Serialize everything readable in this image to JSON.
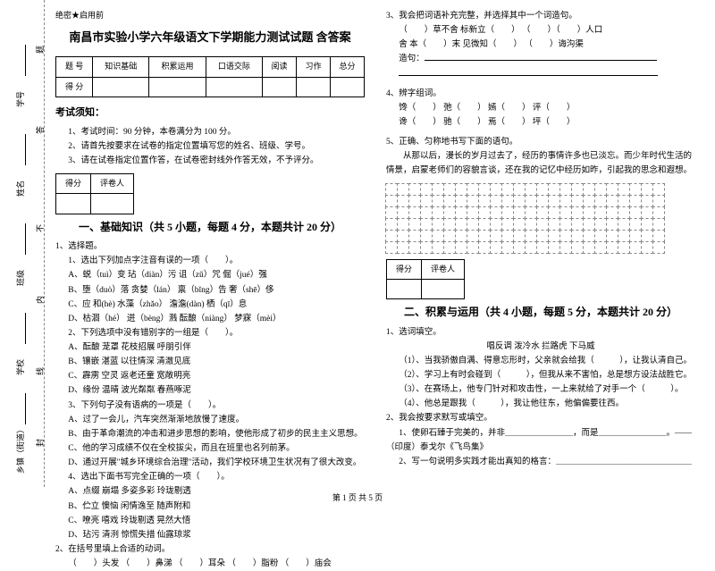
{
  "margin": {
    "labels": [
      "乡镇（街道）",
      "学校",
      "班级",
      "姓名",
      "学号"
    ],
    "cuts": [
      "封",
      "线",
      "内",
      "不",
      "答",
      "题"
    ]
  },
  "secret": "绝密★启用前",
  "title": "南昌市实验小学六年级语文下学期能力测试试题 含答案",
  "scoreTable": {
    "headers": [
      "题  号",
      "知识基础",
      "积累运用",
      "口语交际",
      "阅读",
      "习作",
      "总分"
    ],
    "row2": "得  分"
  },
  "noticeTitle": "考试须知：",
  "notices": [
    "1、考试时间：90 分钟，本卷满分为 100 分。",
    "2、请首先按要求在试卷的指定位置填写您的姓名、班级、学号。",
    "3、请在试卷指定位置作答，在试卷密封线外作答无效，不予评分。"
  ],
  "scoreboxCols": [
    "得分",
    "评卷人"
  ],
  "section1": "一、基础知识（共 5 小题，每题 4 分，本题共计 20 分）",
  "q1": {
    "title": "1、选择题。",
    "sub1": "1、选出下列加点字注音有误的一项（　　）。",
    "opts1": [
      "A、蜕（tuì）变        玷（diàn）污        诅（zǔ）咒            倔（jué）强",
      "B、堕（duò）落         贪婪（lán）          禀（bǐng）告         奢（shē）侈",
      "C、应 和(hè)           水藻（zhǎo）          澹澹(dàn)            栖（qī）息",
      "D、枯涸（hé）            迸（bèng）溅        酝酿（niàng）        梦寐（mèi）"
    ],
    "sub2": "2、下列选项中没有错别字的一组是（　　）。",
    "opts2": [
      "A、酝酿    茏罩    花枝招展    呼朋引伴",
      "B、镶嵌    湛蓝    以往情深    清澈见底",
      "C、霹雳    空灵    返老还童    宽敞明亮",
      "D、缘份    温晴    波光粼粼    春燕啄泥"
    ],
    "sub3": "3、下列句子没有语病的一项是（　　）。",
    "opts3": [
      "A、过了一会儿，汽车突然渐渐地放慢了速度。",
      "B、由于革命潮流的冲击和进步思想的影响，使他形成了初步的民主主义思想。",
      "C、他的学习成绩不仅在全校拔尖，而且在班里也名列前茅。",
      "D、通过开展\"城乡环境综合治理\"活动，我们学校环境卫生状况有了很大改变。"
    ],
    "sub4": "4、选出下面书写完全正确的一项（　　）。",
    "opts4": [
      "A、点缀    崩塌    多姿多彩    玲珑剔透",
      "B、伫立    懊恼    闲情逸至    随声附和",
      "C、嘹亮    嘻戏    玲珑剔透    晃然大悟",
      "D、玷污    清洌    惊慌失措    仙露琼浆"
    ]
  },
  "q2": {
    "title": "2、在括号里填上合适的动词。",
    "line": "（　　）头发    （　　）鼻涕    （　　）耳朵    （　　）脂粉    （　　）庙会"
  },
  "q3": {
    "title": "3、我会把词语补充完整，并选择其中一个词造句。",
    "line1": "（　　）草不舍          标新立（　　）   （　　）（　　）人口",
    "line2": "舍 本（　　）末          见微知（　　）   （　　）诲沟渠",
    "make": "造句："
  },
  "q4": {
    "title": "4、辨字组词。",
    "line1": "馋（　　）    弛（　　）    嫣（　　）    评（　　）",
    "line2": "谗（　　）    驰（　　）    焉（　　）    坪（　　）"
  },
  "q5": {
    "title": "5、正确、匀称地书写下面的语句。",
    "text": "从那以后，漫长的岁月过去了，经历的事情许多也已淡忘。而少年时代生活的情景，启蒙老师们的容貌言谈，还在我的记忆中经历如昨，引起我的思念和遐想。"
  },
  "section2": "二、积累与运用（共 4 小题，每题 5 分，本题共计 20 分）",
  "r1": {
    "title": "1、选词填空。",
    "words": "唱反调      泼冷水      拦路虎      下马威",
    "lines": [
      "（1）、当我骄傲自满、得意忘形时，父亲就会给我（　　　），让我认清自己。",
      "（2）、学习上有时会碰到（　　　），但我从来不害怕，总是想方设法战胜它。",
      "（3）、在赛场上，他专门针对和攻击性，一上来就给了对手一个（　　　）。",
      "（4）、他总是跟我（　　　），我让他往东，他偏偏要往西。"
    ]
  },
  "r2": {
    "title": "2、我会按要求默写或填空。",
    "line1": "1、使卵石臻于完美的，并非＿＿＿＿＿＿＿＿，而是＿＿＿＿＿＿＿＿。——（印度）泰戈尔《飞鸟集》",
    "line2": "2、写一句说明多实践才能出真知的格言：＿＿＿＿＿＿＿＿＿＿＿＿＿＿＿＿"
  },
  "footer": "第 1 页 共 5 页"
}
